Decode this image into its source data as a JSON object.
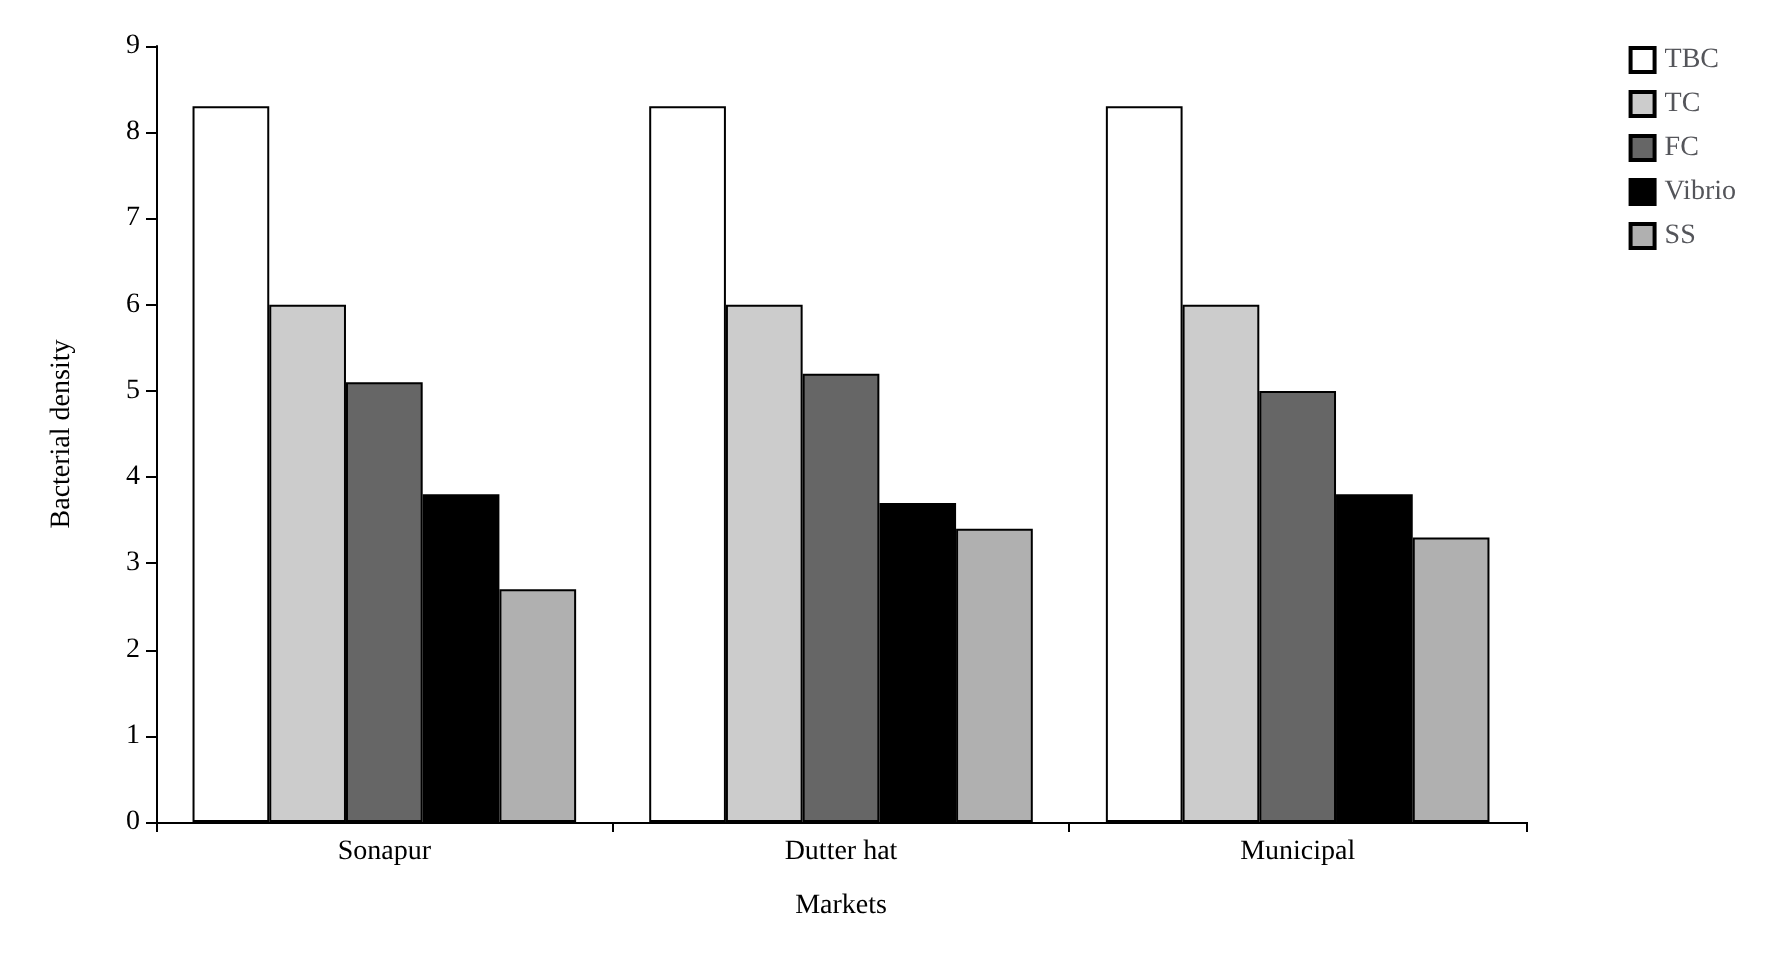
{
  "chart_data": {
    "type": "bar",
    "xlabel": "Markets",
    "ylabel": "Bacterial density",
    "categories": [
      "Sonapur",
      "Dutter hat",
      "Municipal"
    ],
    "series": [
      {
        "name": "TBC",
        "color": "#ffffff",
        "values": [
          8.3,
          8.3,
          8.3
        ]
      },
      {
        "name": "TC",
        "color": "#cccccc",
        "values": [
          6.0,
          6.0,
          6.0
        ]
      },
      {
        "name": "FC",
        "color": "#666666",
        "values": [
          5.1,
          5.2,
          5.0
        ]
      },
      {
        "name": "Vibrio",
        "color": "#000000",
        "values": [
          3.8,
          3.7,
          3.8
        ]
      },
      {
        "name": "SS",
        "color": "#b0b0b0",
        "values": [
          2.7,
          3.4,
          3.3
        ]
      }
    ],
    "ylim": [
      0,
      9
    ],
    "yticks": [
      0,
      1,
      2,
      3,
      4,
      5,
      6,
      7,
      8,
      9
    ],
    "grid": false,
    "legend": "top right"
  }
}
